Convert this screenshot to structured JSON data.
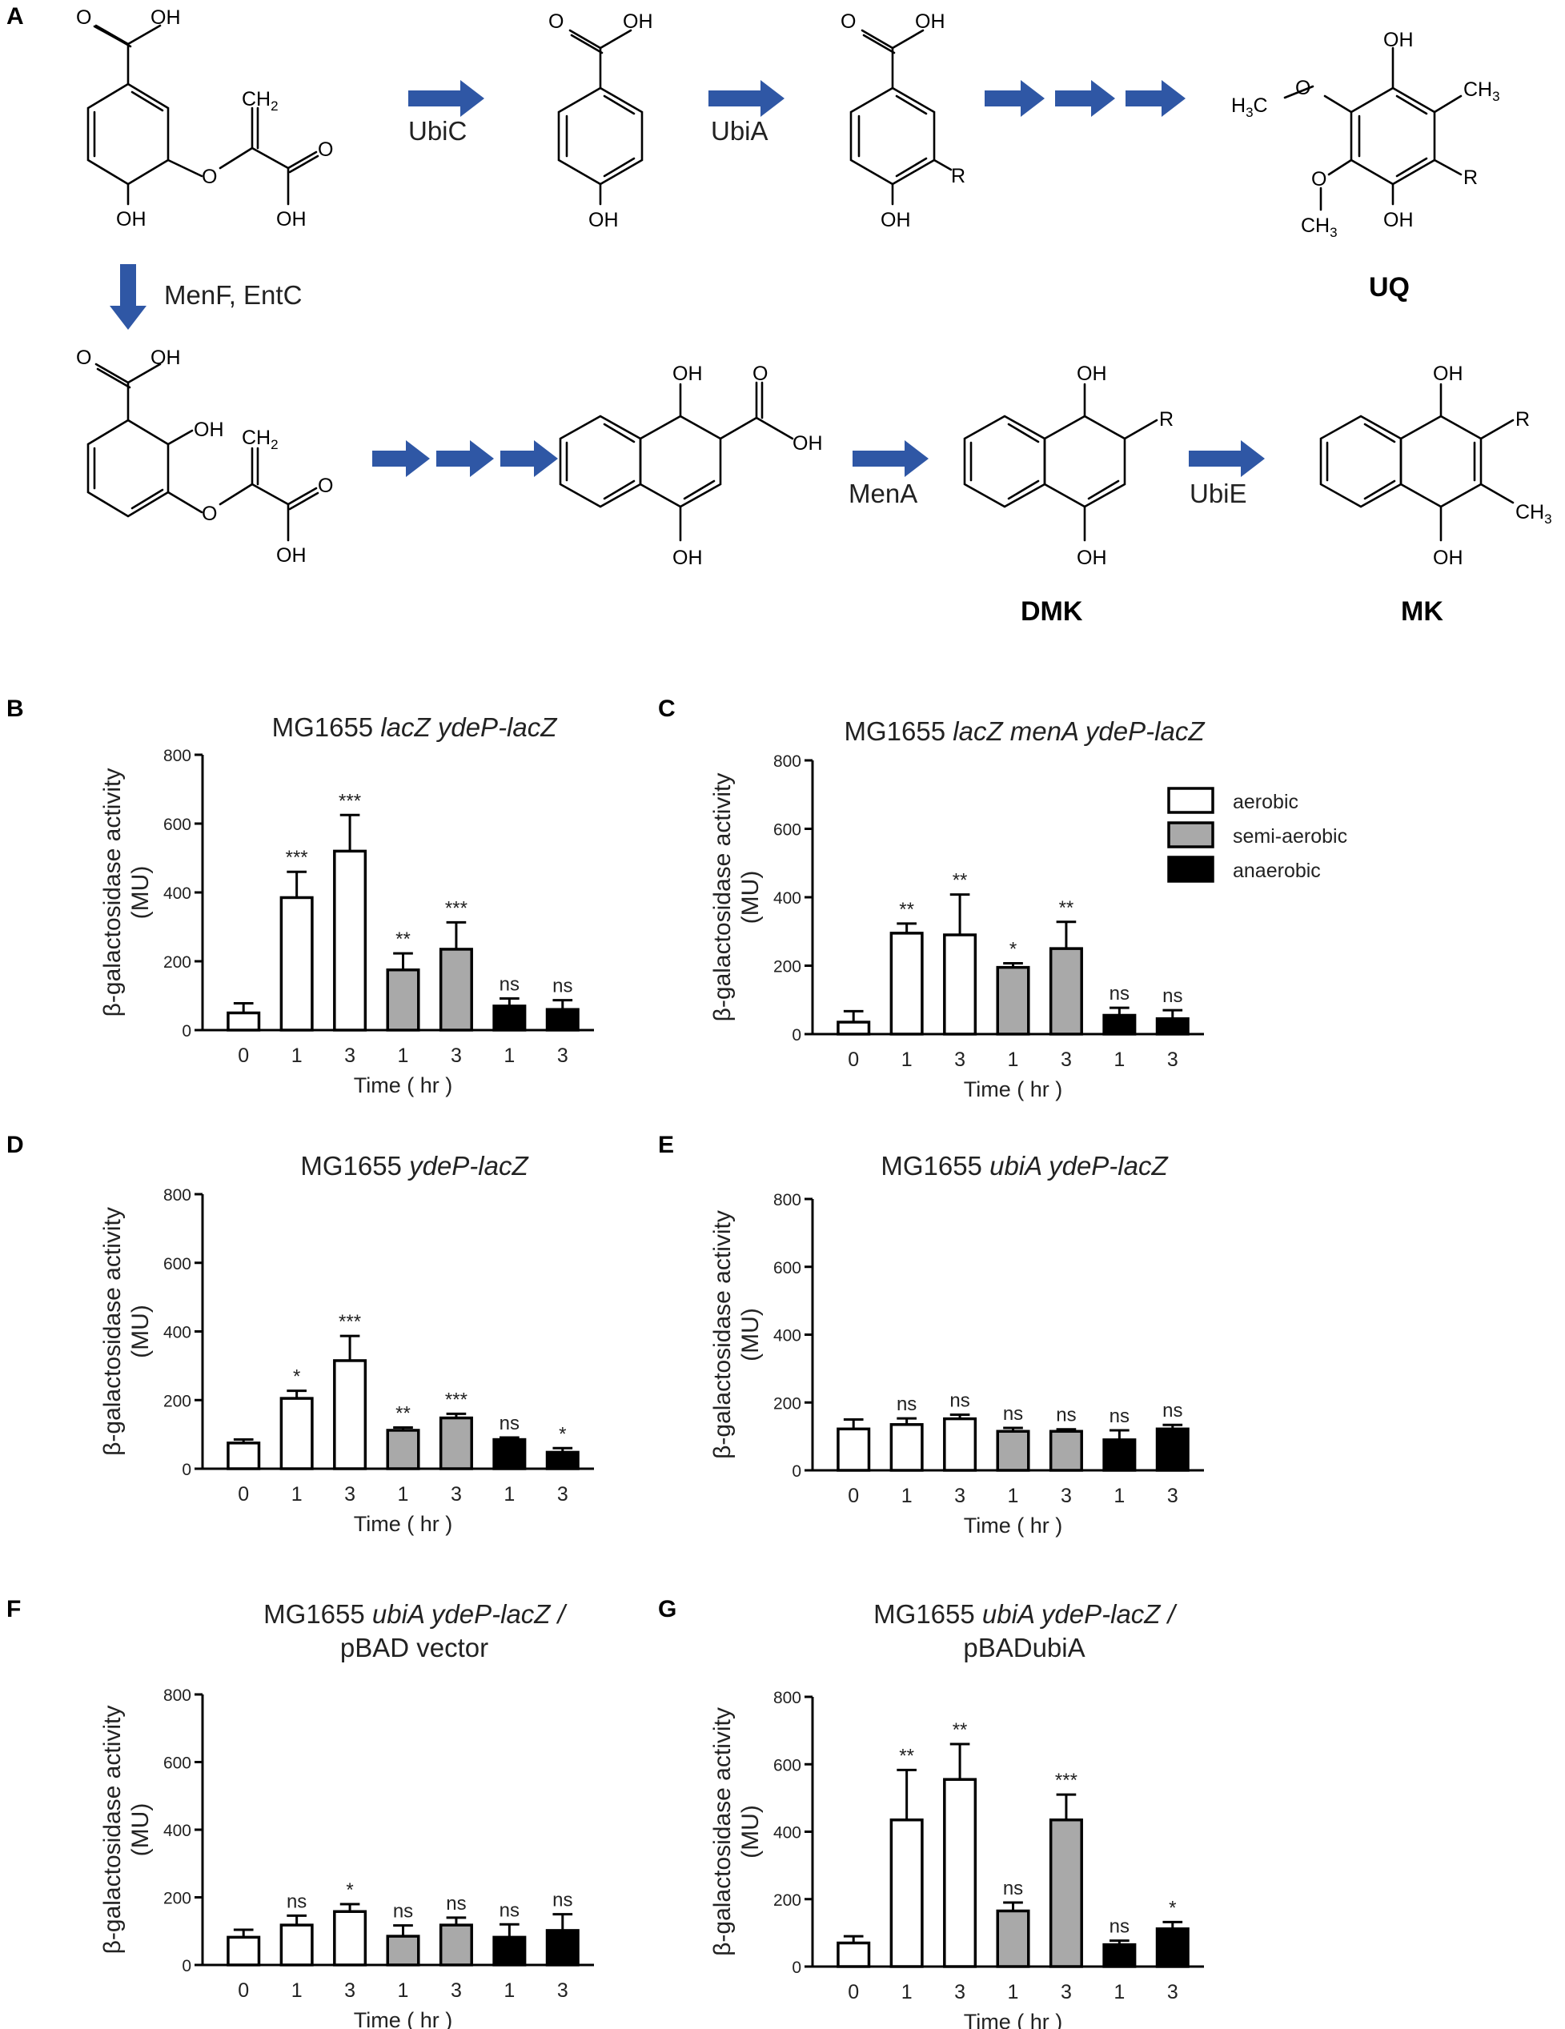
{
  "panel_a": {
    "letter": "A",
    "enzymes": {
      "ubic": "UbiC",
      "ubia": "UbiA",
      "menf": "MenF, EntC",
      "mena": "MenA",
      "ubie": "UbiE"
    },
    "compounds": {
      "uq": "UQ",
      "dmk": "DMK",
      "mk": "MK"
    },
    "atoms": {
      "oh": "OH",
      "o": "O",
      "r": "R",
      "ch2": "CH",
      "ch3": "CH",
      "h3c_h": "H",
      "h3c_c": "C",
      "sub2": "2",
      "sub3": "3"
    },
    "colors": {
      "arrow": "#2f57a5"
    }
  },
  "legend": [
    "aerobic",
    "semi-aerobic",
    "anaerobic"
  ],
  "colors": {
    "aerobic": "#ffffff",
    "semi-aerobic": "#a9a9a9",
    "anaerobic": "#000000"
  },
  "chart_data": [
    {
      "letter": "B",
      "type": "bar",
      "title": [
        {
          "t": "MG1655 ",
          "i": false
        },
        {
          "t": "lacZ ydeP-lacZ",
          "i": true
        }
      ],
      "ylabel": "β-galactosidase activity (MU)",
      "xlabel": "Time ( hr )",
      "ylim": [
        0,
        800
      ],
      "yticks": [
        0,
        200,
        400,
        600,
        800
      ],
      "categories": [
        "0",
        "1",
        "3",
        "1",
        "3",
        "1",
        "3"
      ],
      "conditions": [
        "aerobic",
        "aerobic",
        "aerobic",
        "semi-aerobic",
        "semi-aerobic",
        "anaerobic",
        "anaerobic"
      ],
      "values": [
        50,
        385,
        520,
        175,
        235,
        70,
        60
      ],
      "errors": [
        28,
        75,
        105,
        48,
        78,
        22,
        27
      ],
      "significance": [
        "",
        "***",
        "***",
        "**",
        "***",
        "ns",
        "ns"
      ]
    },
    {
      "letter": "C",
      "type": "bar",
      "title": [
        {
          "t": "MG1655 ",
          "i": false
        },
        {
          "t": "lacZ menA ydeP-lacZ",
          "i": true
        }
      ],
      "ylabel": "β-galactosidase activity (MU)",
      "xlabel": "Time ( hr )",
      "ylim": [
        0,
        800
      ],
      "yticks": [
        0,
        200,
        400,
        600,
        800
      ],
      "categories": [
        "0",
        "1",
        "3",
        "1",
        "3",
        "1",
        "3"
      ],
      "conditions": [
        "aerobic",
        "aerobic",
        "aerobic",
        "semi-aerobic",
        "semi-aerobic",
        "anaerobic",
        "anaerobic"
      ],
      "values": [
        35,
        295,
        290,
        195,
        250,
        55,
        45
      ],
      "errors": [
        32,
        28,
        118,
        12,
        78,
        22,
        25
      ],
      "significance": [
        "",
        "**",
        "**",
        "*",
        "**",
        "ns",
        "ns"
      ]
    },
    {
      "letter": "D",
      "type": "bar",
      "title": [
        {
          "t": "MG1655  ",
          "i": false
        },
        {
          "t": "ydeP-lacZ",
          "i": true
        }
      ],
      "ylabel": "β-galactosidase activity (MU)",
      "xlabel": "Time ( hr )",
      "ylim": [
        0,
        800
      ],
      "yticks": [
        0,
        200,
        400,
        600,
        800
      ],
      "categories": [
        "0",
        "1",
        "3",
        "1",
        "3",
        "1",
        "3"
      ],
      "conditions": [
        "aerobic",
        "aerobic",
        "aerobic",
        "semi-aerobic",
        "semi-aerobic",
        "anaerobic",
        "anaerobic"
      ],
      "values": [
        75,
        205,
        315,
        112,
        148,
        85,
        48
      ],
      "errors": [
        10,
        22,
        72,
        8,
        12,
        6,
        12
      ],
      "significance": [
        "",
        "*",
        "***",
        "**",
        "***",
        "ns",
        "*"
      ]
    },
    {
      "letter": "E",
      "type": "bar",
      "title": [
        {
          "t": "MG1655 ",
          "i": false
        },
        {
          "t": "ubiA ydeP-lacZ",
          "i": true
        }
      ],
      "ylabel": "β-galactosidase activity (MU)",
      "xlabel": "Time ( hr )",
      "ylim": [
        0,
        800
      ],
      "yticks": [
        0,
        200,
        400,
        600,
        800
      ],
      "categories": [
        "0",
        "1",
        "3",
        "1",
        "3",
        "1",
        "3"
      ],
      "conditions": [
        "aerobic",
        "aerobic",
        "aerobic",
        "semi-aerobic",
        "semi-aerobic",
        "anaerobic",
        "anaerobic"
      ],
      "values": [
        122,
        135,
        152,
        115,
        115,
        90,
        122
      ],
      "errors": [
        28,
        18,
        12,
        10,
        6,
        28,
        12
      ],
      "significance": [
        "",
        "ns",
        "ns",
        "ns",
        "ns",
        "ns",
        "ns"
      ]
    },
    {
      "letter": "F",
      "type": "bar",
      "title": [
        {
          "t": "MG1655 ",
          "i": false
        },
        {
          "t": "ubiA ydeP-lacZ /",
          "i": true
        }
      ],
      "title2": "pBAD vector",
      "ylabel": "β-galactosidase activity (MU)",
      "xlabel": "Time ( hr )",
      "ylim": [
        0,
        800
      ],
      "yticks": [
        0,
        200,
        400,
        600,
        800
      ],
      "categories": [
        "0",
        "1",
        "3",
        "1",
        "3",
        "1",
        "3"
      ],
      "conditions": [
        "aerobic",
        "aerobic",
        "aerobic",
        "semi-aerobic",
        "semi-aerobic",
        "anaerobic",
        "anaerobic"
      ],
      "values": [
        82,
        118,
        158,
        85,
        118,
        82,
        102
      ],
      "errors": [
        22,
        28,
        22,
        32,
        22,
        38,
        48
      ],
      "significance": [
        "",
        "ns",
        "*",
        "ns",
        "ns",
        "ns",
        "ns"
      ]
    },
    {
      "letter": "G",
      "type": "bar",
      "title": [
        {
          "t": "MG1655 ",
          "i": false
        },
        {
          "t": "ubiA ydeP-lacZ /",
          "i": true
        }
      ],
      "title2": "pBADubiA",
      "ylabel": "β-galactosidase activity (MU)",
      "xlabel": "Time ( hr )",
      "ylim": [
        0,
        800
      ],
      "yticks": [
        0,
        200,
        400,
        600,
        800
      ],
      "categories": [
        "0",
        "1",
        "3",
        "1",
        "3",
        "1",
        "3"
      ],
      "conditions": [
        "aerobic",
        "aerobic",
        "aerobic",
        "semi-aerobic",
        "semi-aerobic",
        "anaerobic",
        "anaerobic"
      ],
      "values": [
        70,
        435,
        555,
        165,
        435,
        65,
        112
      ],
      "errors": [
        20,
        148,
        105,
        25,
        75,
        12,
        20
      ],
      "significance": [
        "",
        "**",
        "**",
        "ns",
        "***",
        "ns",
        "*"
      ]
    }
  ]
}
